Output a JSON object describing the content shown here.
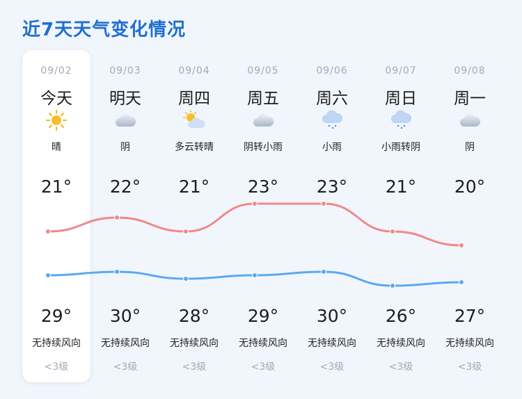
{
  "title": "近7天天气变化情况",
  "days": [
    {
      "date": "09/02",
      "weekday": "今天",
      "weather": "晴",
      "icon": "sun-icon",
      "high": "21°",
      "low": "29°",
      "wind": "无持续风向",
      "level": "<3级"
    },
    {
      "date": "09/03",
      "weekday": "明天",
      "weather": "阴",
      "icon": "cloud-icon",
      "high": "22°",
      "low": "30°",
      "wind": "无持续风向",
      "level": "<3级"
    },
    {
      "date": "09/04",
      "weekday": "周四",
      "weather": "多云转晴",
      "icon": "partly-cloudy-icon",
      "high": "21°",
      "low": "28°",
      "wind": "无持续风向",
      "level": "<3级"
    },
    {
      "date": "09/05",
      "weekday": "周五",
      "weather": "阴转小雨",
      "icon": "cloud-icon",
      "high": "23°",
      "low": "29°",
      "wind": "无持续风向",
      "level": "<3级"
    },
    {
      "date": "09/06",
      "weekday": "周六",
      "weather": "小雨",
      "icon": "rain-icon",
      "high": "23°",
      "low": "30°",
      "wind": "无持续风向",
      "level": "<3级"
    },
    {
      "date": "09/07",
      "weekday": "周日",
      "weather": "小雨转阴",
      "icon": "rain-icon",
      "high": "21°",
      "low": "26°",
      "wind": "无持续风向",
      "level": "<3级"
    },
    {
      "date": "09/08",
      "weekday": "周一",
      "weather": "阴",
      "icon": "cloud-icon",
      "high": "20°",
      "low": "27°",
      "wind": "无持续风向",
      "level": "<3级"
    }
  ],
  "chart_data": {
    "type": "line",
    "categories": [
      "09/02",
      "09/03",
      "09/04",
      "09/05",
      "09/06",
      "09/07",
      "09/08"
    ],
    "series": [
      {
        "values": [
          21,
          22,
          21,
          23,
          23,
          21,
          20
        ],
        "color": "#f0898a"
      },
      {
        "values": [
          29,
          30,
          28,
          29,
          30,
          26,
          27
        ],
        "color": "#5aa9f0"
      }
    ]
  },
  "colors": {
    "title": "#1f6fd1",
    "upper_line": "#f0898a",
    "lower_line": "#5aa9f0"
  }
}
